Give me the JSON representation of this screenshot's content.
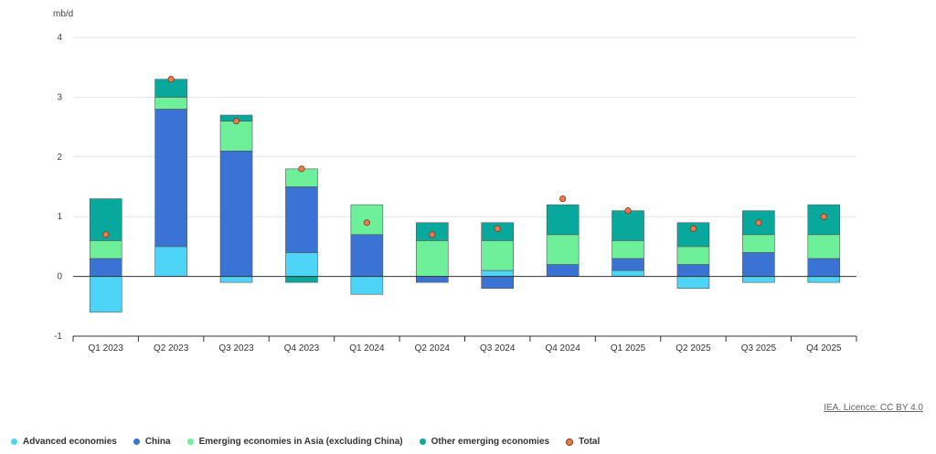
{
  "chart_data": {
    "type": "bar",
    "stacked": true,
    "unit": "mb/d",
    "ylim": [
      -1,
      4
    ],
    "yticks": [
      "4",
      "3",
      "2",
      "1",
      "0",
      "-1"
    ],
    "grid": true,
    "legend_position": "bottom",
    "categories": [
      "Q1 2023",
      "Q2 2023",
      "Q3 2023",
      "Q4 2023",
      "Q1 2024",
      "Q2 2024",
      "Q3 2024",
      "Q4 2024",
      "Q1 2025",
      "Q2 2025",
      "Q3 2025",
      "Q4 2025"
    ],
    "series": [
      {
        "name": "Advanced economies",
        "color": "#4dd4f7",
        "values": [
          -0.6,
          0.5,
          -0.1,
          0.4,
          -0.3,
          0.0,
          0.1,
          0.0,
          0.1,
          -0.2,
          -0.1,
          -0.1
        ]
      },
      {
        "name": "China",
        "color": "#3b73d4",
        "values": [
          0.3,
          2.3,
          2.1,
          1.1,
          0.7,
          -0.1,
          -0.2,
          0.2,
          0.2,
          0.2,
          0.4,
          0.3
        ]
      },
      {
        "name": "Emerging economies in Asia (excluding China)",
        "color": "#6ef09a",
        "values": [
          0.3,
          0.2,
          0.5,
          0.3,
          0.5,
          0.6,
          0.5,
          0.5,
          0.3,
          0.3,
          0.3,
          0.4
        ]
      },
      {
        "name": "Other emerging economies",
        "color": "#09a89d",
        "values": [
          0.7,
          0.3,
          0.1,
          -0.1,
          0.0,
          0.3,
          0.3,
          0.5,
          0.5,
          0.4,
          0.4,
          0.5
        ]
      }
    ],
    "total": {
      "name": "Total",
      "color": "#f07a4e",
      "values": [
        0.7,
        3.3,
        2.6,
        1.8,
        0.9,
        0.7,
        0.8,
        1.3,
        1.1,
        0.8,
        0.9,
        1.0
      ]
    }
  },
  "credit": "IEA. Licence: CC BY 4.0"
}
